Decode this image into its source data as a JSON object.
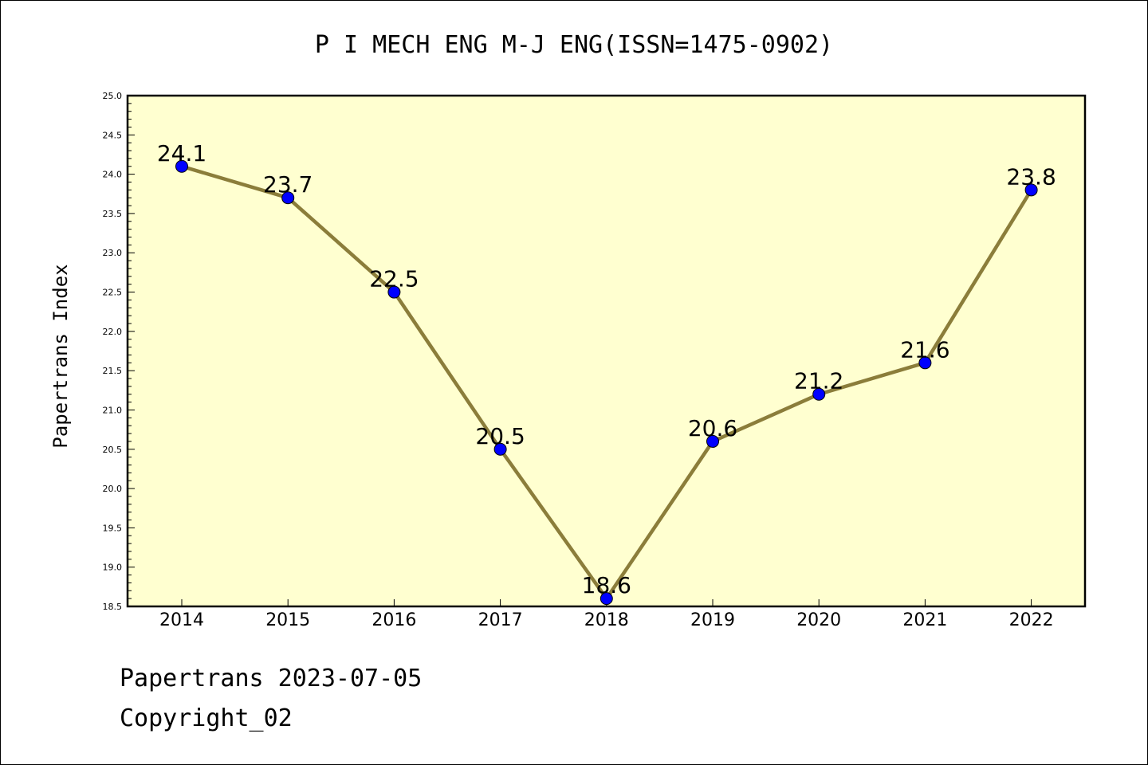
{
  "chart_data": {
    "type": "line",
    "title": "P I MECH ENG M-J ENG(ISSN=1475-0902)",
    "xlabel": "",
    "ylabel": "Papertrans Index",
    "categories": [
      "2014",
      "2015",
      "2016",
      "2017",
      "2018",
      "2019",
      "2020",
      "2021",
      "2022"
    ],
    "values": [
      24.1,
      23.7,
      22.5,
      20.5,
      18.6,
      20.6,
      21.2,
      21.6,
      23.8
    ],
    "data_labels": [
      "24.1",
      "23.7",
      "22.5",
      "20.5",
      "18.6",
      "20.6",
      "21.2",
      "21.6",
      "23.8"
    ],
    "ylim": [
      18.5,
      25.0
    ],
    "yticks": [
      "18.5",
      "19.0",
      "19.5",
      "20.0",
      "20.5",
      "21.0",
      "21.5",
      "22.0",
      "22.5",
      "23.0",
      "23.5",
      "24.0",
      "24.5",
      "25.0"
    ],
    "grid": false,
    "legend": "none",
    "colors": {
      "plot_background": "#ffffd0",
      "line": "#8b7d3a",
      "marker": "#0000ff"
    }
  },
  "footer": {
    "line1": "Papertrans 2023-07-05",
    "line2": "Copyright_02"
  }
}
